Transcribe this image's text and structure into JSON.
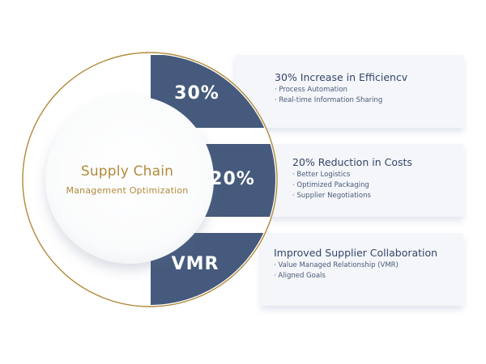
{
  "center": {
    "title": "Supply Chain",
    "subtitle": "Management Optimization"
  },
  "colors": {
    "navy": "#455a7c",
    "gold": "#b18a3c",
    "heading_text": "#34456a",
    "card_bg": "#f4f6f9"
  },
  "items": [
    {
      "badge": "30%",
      "heading": "30% Increase in Efficiencv",
      "bullets": [
        "· Process Automation",
        "· Real-time Information Sharing"
      ]
    },
    {
      "badge": "20%",
      "heading": "20% Reduction in Costs",
      "bullets": [
        "· Better Logistics",
        "· Optimized Packaging",
        "· Supplier Negotiations"
      ]
    },
    {
      "badge": "VMR",
      "heading": "Improved Supplier Collaboration",
      "bullets": [
        "· Value Managed Relationship (VMR)",
        "· Aligned Goals"
      ]
    }
  ]
}
